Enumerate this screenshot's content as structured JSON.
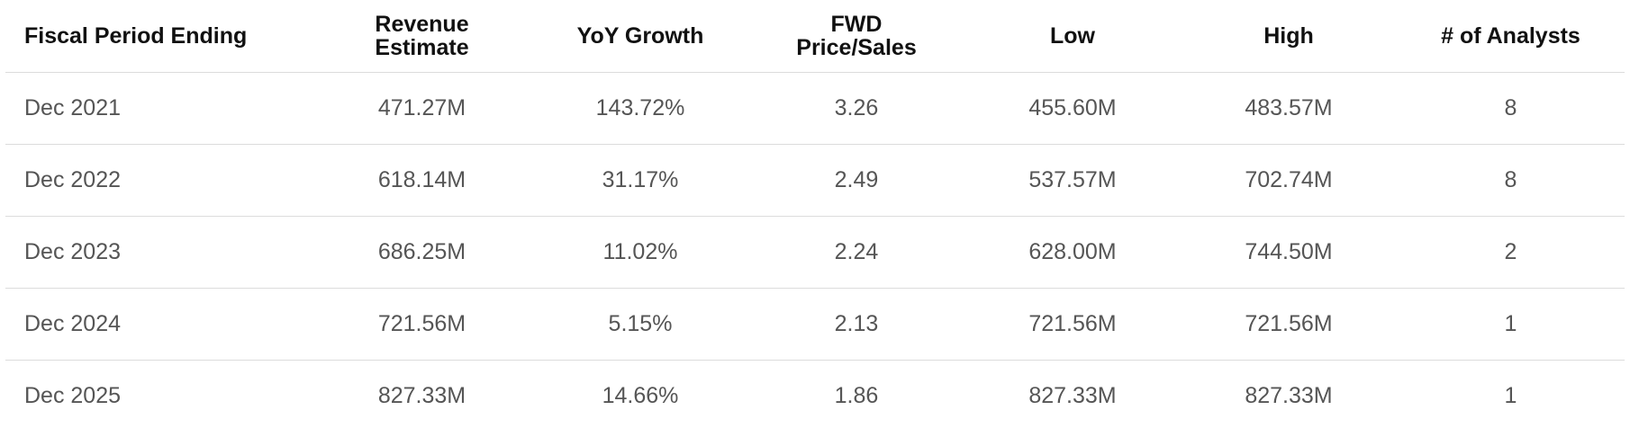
{
  "table": {
    "headers": [
      [
        "Fiscal Period Ending"
      ],
      [
        "Revenue",
        "Estimate"
      ],
      [
        "YoY Growth"
      ],
      [
        "FWD",
        "Price/Sales"
      ],
      [
        "Low"
      ],
      [
        "High"
      ],
      [
        "# of Analysts"
      ]
    ],
    "rows": [
      [
        "Dec 2021",
        "471.27M",
        "143.72%",
        "3.26",
        "455.60M",
        "483.57M",
        "8"
      ],
      [
        "Dec 2022",
        "618.14M",
        "31.17%",
        "2.49",
        "537.57M",
        "702.74M",
        "8"
      ],
      [
        "Dec 2023",
        "686.25M",
        "11.02%",
        "2.24",
        "628.00M",
        "744.50M",
        "2"
      ],
      [
        "Dec 2024",
        "721.56M",
        "5.15%",
        "2.13",
        "721.56M",
        "721.56M",
        "1"
      ],
      [
        "Dec 2025",
        "827.33M",
        "14.66%",
        "1.86",
        "827.33M",
        "827.33M",
        "1"
      ]
    ]
  }
}
